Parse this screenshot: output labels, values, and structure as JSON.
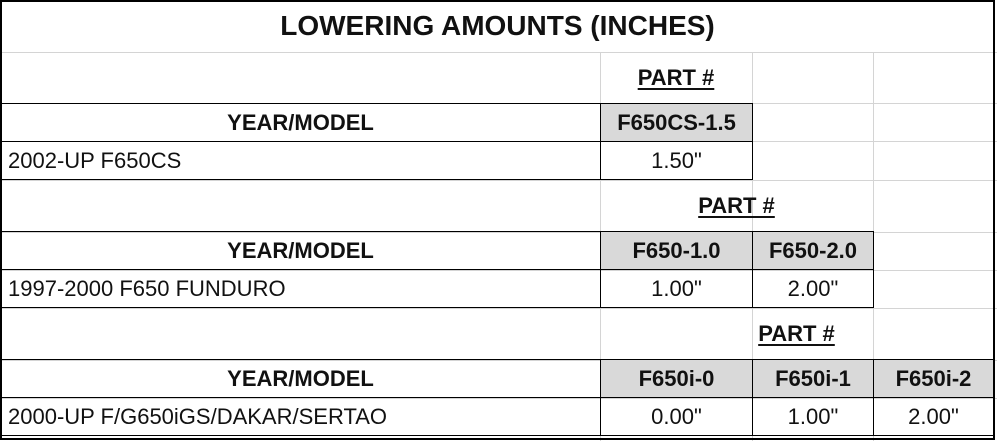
{
  "title": "LOWERING AMOUNTS (INCHES)",
  "sections": [
    {
      "part_label": "PART #",
      "header": "YEAR/MODEL",
      "model": "2002-UP F650CS",
      "parts": [
        "F650CS-1.5"
      ],
      "values": [
        "1.50\""
      ]
    },
    {
      "part_label": "PART #",
      "header": "YEAR/MODEL",
      "model": "1997-2000 F650 FUNDURO",
      "parts": [
        "F650-1.0",
        "F650-2.0"
      ],
      "values": [
        "1.00\"",
        "2.00\""
      ]
    },
    {
      "part_label": "PART #",
      "header": "YEAR/MODEL",
      "model": "2000-UP F/G650iGS/DAKAR/SERTAO",
      "parts": [
        "F650i-0",
        "F650i-1",
        "F650i-2"
      ],
      "values": [
        "0.00\"",
        "1.00\"",
        "2.00\""
      ]
    }
  ],
  "colors": {
    "header_fill": "#d9d9d9",
    "gridline": "#d4d4d4",
    "border": "#000000"
  }
}
